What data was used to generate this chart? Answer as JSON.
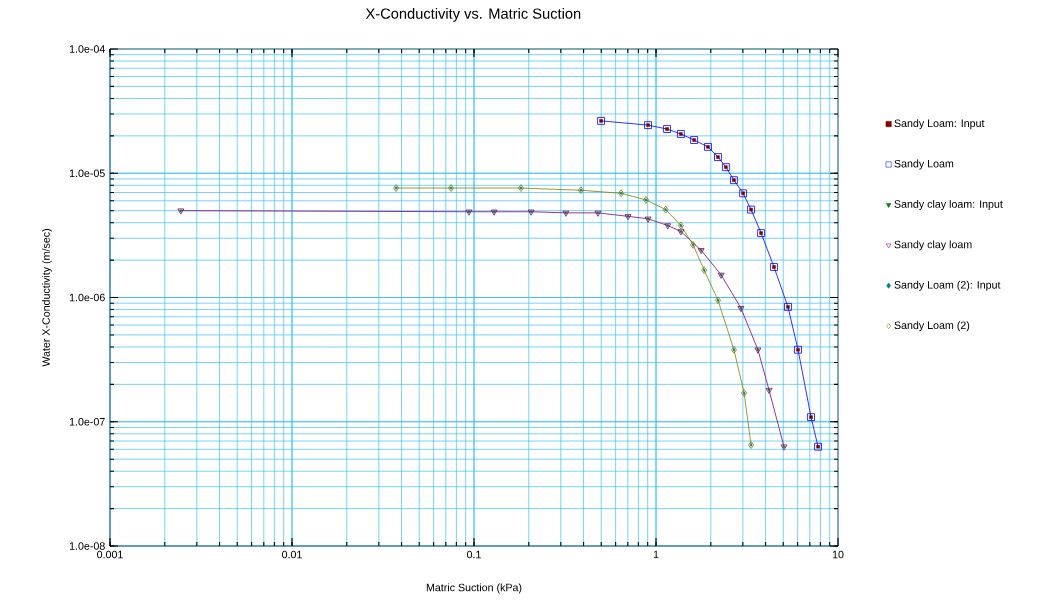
{
  "chart_data": {
    "type": "line",
    "title": "X-Conductivity vs. Matric Suction",
    "xlabel": "Matric Suction (kPa)",
    "ylabel": "Water X-Conductivity (m/sec)",
    "log": "xy",
    "grid": true,
    "legend": "right",
    "xlim": [
      0.001,
      10
    ],
    "ylim": [
      1e-08,
      0.0001
    ],
    "xticks": [
      0.001,
      0.01,
      0.1,
      1,
      10
    ],
    "yticks": [
      {
        "value": 1e-08,
        "label": "1.0e-08"
      },
      {
        "value": 1e-07,
        "label": "1.0e-07"
      },
      {
        "value": 1e-06,
        "label": "1.0e-06"
      },
      {
        "value": 1e-05,
        "label": "1.0e-05"
      },
      {
        "value": 0.0001,
        "label": "1.0e-04"
      }
    ],
    "series": [
      {
        "name": "Sandy Loam: Input",
        "type": "scatter",
        "marker": "square",
        "color": "#800000",
        "x": [
          0.499,
          0.904,
          1.15,
          1.37,
          1.62,
          1.93,
          2.19,
          2.42,
          2.68,
          3.01,
          3.33,
          3.78,
          4.45,
          5.31,
          6.03,
          7.11,
          7.77
        ],
        "values": [
          2.64e-05,
          2.44e-05,
          2.27e-05,
          2.07e-05,
          1.85e-05,
          1.63e-05,
          1.35e-05,
          1.12e-05,
          8.8e-06,
          6.9e-06,
          5.1e-06,
          3.3e-06,
          1.76e-06,
          8.4e-07,
          3.8e-07,
          1.09e-07,
          6.3e-08
        ]
      },
      {
        "name": "Sandy Loam",
        "marker": "square",
        "color": "#0000ff",
        "x": [
          0.499,
          0.904,
          1.15,
          1.37,
          1.62,
          1.93,
          2.19,
          2.42,
          2.68,
          3.01,
          3.33,
          3.78,
          4.45,
          5.31,
          6.03,
          7.11,
          7.77
        ],
        "values": [
          2.64e-05,
          2.44e-05,
          2.27e-05,
          2.07e-05,
          1.85e-05,
          1.63e-05,
          1.35e-05,
          1.12e-05,
          8.8e-06,
          6.9e-06,
          5.1e-06,
          3.3e-06,
          1.76e-06,
          8.4e-07,
          3.8e-07,
          1.09e-07,
          6.3e-08
        ]
      },
      {
        "name": "Sandy clay loam: Input",
        "type": "scatter",
        "marker": "triangle",
        "color": "#008000",
        "x": [
          0.00245,
          0.0939,
          0.129,
          0.206,
          0.32,
          0.48,
          0.702,
          0.904,
          1.16,
          1.37,
          1.77,
          2.28,
          2.93,
          3.63,
          4.18,
          5.05
        ],
        "values": [
          5e-06,
          4.9e-06,
          4.9e-06,
          4.9e-06,
          4.8e-06,
          4.8e-06,
          4.5e-06,
          4.3e-06,
          3.8e-06,
          3.4e-06,
          2.4e-06,
          1.52e-06,
          8.2e-07,
          3.8e-07,
          1.8e-07,
          6.3e-08
        ]
      },
      {
        "name": "Sandy clay loam",
        "marker": "triangle",
        "color": "#800080",
        "x": [
          0.00245,
          0.0939,
          0.129,
          0.206,
          0.32,
          0.48,
          0.702,
          0.904,
          1.16,
          1.37,
          1.77,
          2.28,
          2.93,
          3.63,
          4.18,
          5.05
        ],
        "values": [
          5e-06,
          4.9e-06,
          4.9e-06,
          4.9e-06,
          4.8e-06,
          4.8e-06,
          4.5e-06,
          4.3e-06,
          3.8e-06,
          3.4e-06,
          2.4e-06,
          1.52e-06,
          8.2e-07,
          3.8e-07,
          1.8e-07,
          6.3e-08
        ]
      },
      {
        "name": "Sandy Loam (2): Input",
        "type": "scatter",
        "marker": "diamond",
        "color": "#008080",
        "x": [
          0.0373,
          0.0748,
          0.181,
          0.387,
          0.643,
          0.881,
          1.13,
          1.37,
          1.6,
          1.84,
          2.19,
          2.68,
          3.05,
          3.33
        ],
        "values": [
          7.6e-06,
          7.6e-06,
          7.6e-06,
          7.3e-06,
          6.9e-06,
          6.1e-06,
          5.1e-06,
          3.8e-06,
          2.65e-06,
          1.66e-06,
          9.5e-07,
          3.8e-07,
          1.7e-07,
          6.5e-08
        ]
      },
      {
        "name": "Sandy Loam (2)",
        "marker": "diamond",
        "color": "#808000",
        "x": [
          0.0373,
          0.0748,
          0.181,
          0.387,
          0.643,
          0.881,
          1.13,
          1.37,
          1.6,
          1.84,
          2.19,
          2.68,
          3.05,
          3.33
        ],
        "values": [
          7.6e-06,
          7.6e-06,
          7.6e-06,
          7.3e-06,
          6.9e-06,
          6.1e-06,
          5.1e-06,
          3.8e-06,
          2.65e-06,
          1.66e-06,
          9.5e-07,
          3.8e-07,
          1.7e-07,
          6.5e-08
        ]
      }
    ]
  }
}
